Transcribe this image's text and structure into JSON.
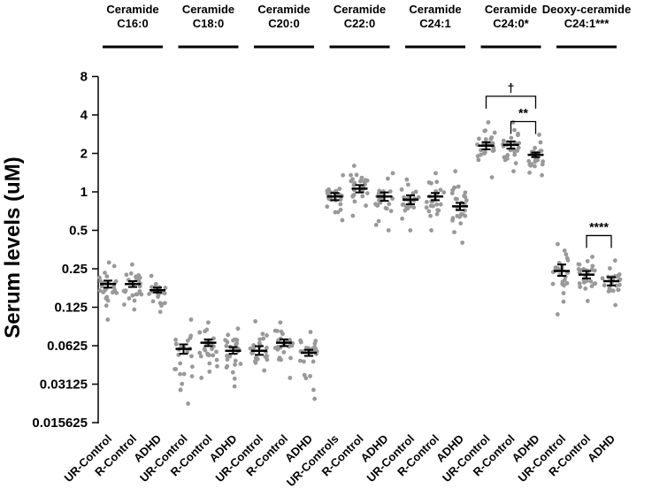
{
  "chart_data": {
    "type": "scatter",
    "title": "",
    "xlabel": "",
    "ylabel": "Serum levels (uM)",
    "yscale": "log2",
    "ylim": [
      0.012,
      8
    ],
    "yticks": [
      8,
      4,
      2,
      1,
      0.5,
      0.25,
      0.125,
      0.0625,
      0.03125,
      0.015625
    ],
    "ytick_labels": [
      "8",
      "4",
      "2",
      "1",
      "0.5",
      "0.25",
      "0.125",
      "0.0625",
      "0.03125",
      "0.015625"
    ],
    "groups": [
      {
        "title": [
          "Ceramide",
          "C16:0"
        ],
        "categories": [
          "UR-Control",
          "R-Control",
          "ADHD"
        ],
        "means": [
          0.19,
          0.19,
          0.17
        ],
        "sem_low": [
          0.178,
          0.18,
          0.163
        ],
        "sem_high": [
          0.202,
          0.2,
          0.178
        ],
        "spread_low": [
          0.1,
          0.12,
          0.115
        ],
        "spread_high": [
          0.28,
          0.27,
          0.22
        ]
      },
      {
        "title": [
          "Ceramide",
          "C18:0"
        ],
        "categories": [
          "UR-Control",
          "R-Control",
          "ADHD"
        ],
        "means": [
          0.059,
          0.066,
          0.057
        ],
        "sem_low": [
          0.054,
          0.062,
          0.054
        ],
        "sem_high": [
          0.064,
          0.07,
          0.061
        ],
        "spread_low": [
          0.022,
          0.035,
          0.03
        ],
        "spread_high": [
          0.1,
          0.095,
          0.085
        ]
      },
      {
        "title": [
          "Ceramide",
          "C20:0"
        ],
        "categories": [
          "UR-Control",
          "R-Control",
          "ADHD"
        ],
        "means": [
          0.057,
          0.066,
          0.055
        ],
        "sem_low": [
          0.053,
          0.062,
          0.052
        ],
        "sem_high": [
          0.062,
          0.07,
          0.058
        ],
        "spread_low": [
          0.04,
          0.035,
          0.024
        ],
        "spread_high": [
          0.097,
          0.095,
          0.08
        ]
      },
      {
        "title": [
          "Ceramide",
          "C22:0"
        ],
        "categories": [
          "UR-Controls",
          "R-Control",
          "ADHD"
        ],
        "means": [
          0.92,
          1.06,
          0.92
        ],
        "sem_low": [
          0.86,
          0.99,
          0.85
        ],
        "sem_high": [
          0.98,
          1.13,
          0.99
        ],
        "spread_low": [
          0.6,
          0.65,
          0.5
        ],
        "spread_high": [
          1.35,
          1.6,
          1.4
        ]
      },
      {
        "title": [
          "Ceramide",
          "C24:1"
        ],
        "categories": [
          "UR-Control",
          "R-Control",
          "ADHD"
        ],
        "means": [
          0.87,
          0.92,
          0.77
        ],
        "sem_low": [
          0.8,
          0.86,
          0.72
        ],
        "sem_high": [
          0.94,
          0.98,
          0.82
        ],
        "spread_low": [
          0.5,
          0.5,
          0.4
        ],
        "spread_high": [
          1.25,
          1.4,
          1.45
        ]
      },
      {
        "title": [
          "Ceramide",
          "C24:0*"
        ],
        "categories": [
          "UR-Control",
          "R-Control",
          "ADHD"
        ],
        "means": [
          2.3,
          2.33,
          1.95
        ],
        "sem_low": [
          2.15,
          2.18,
          1.87
        ],
        "sem_high": [
          2.45,
          2.48,
          2.03
        ],
        "spread_low": [
          1.3,
          1.45,
          1.35
        ],
        "spread_high": [
          3.5,
          3.5,
          2.8
        ]
      },
      {
        "title": [
          "Deoxy-ceramide",
          "C24:1***"
        ],
        "categories": [
          "UR-Control",
          "R-Control",
          "ADHD"
        ],
        "means": [
          0.24,
          0.225,
          0.2
        ],
        "sem_low": [
          0.22,
          0.21,
          0.185
        ],
        "sem_high": [
          0.27,
          0.24,
          0.215
        ],
        "spread_low": [
          0.11,
          0.14,
          0.13
        ],
        "spread_high": [
          0.39,
          0.31,
          0.29
        ]
      }
    ],
    "annotations": [
      {
        "group": 5,
        "from": 0,
        "to": 2,
        "label": "†",
        "y": 5.6
      },
      {
        "group": 5,
        "from": 1,
        "to": 2,
        "label": "**",
        "y": 3.55
      },
      {
        "group": 6,
        "from": 1,
        "to": 2,
        "label": "****",
        "y": 0.455
      }
    ],
    "style": {
      "point_color": "#999999",
      "line_color": "#000000"
    }
  }
}
